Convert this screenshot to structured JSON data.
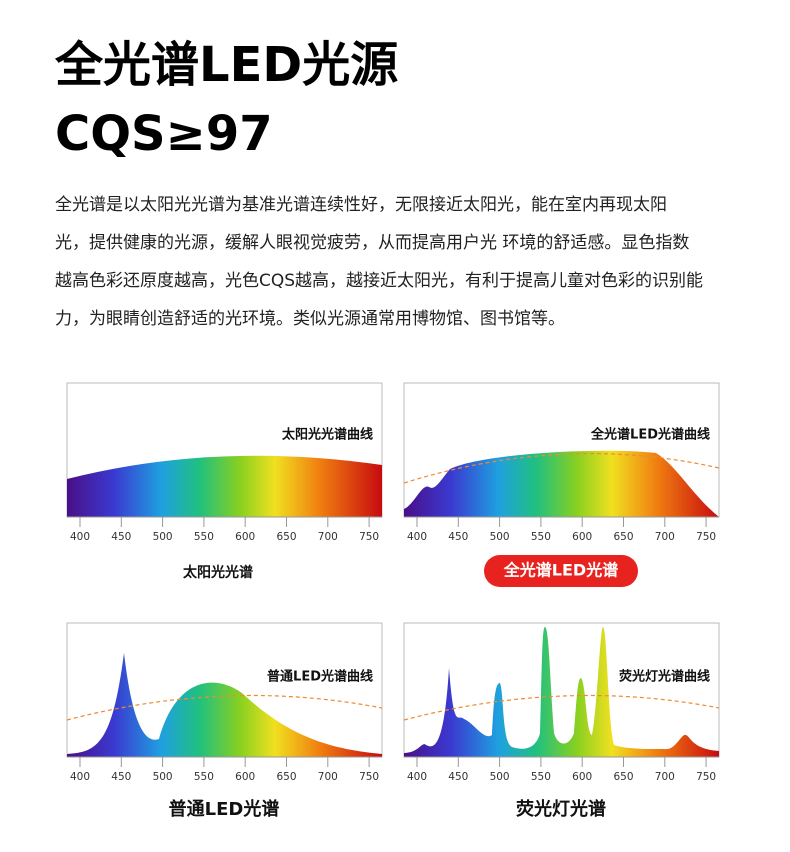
{
  "header": {
    "title": "全光谱LED光源",
    "subtitle": "CQS≥97"
  },
  "paragraph": [
    "全光谱是以太阳光光谱为基准光谱连续性好，无限接近太阳光，能在室内再现太阳",
    "光，提供健康的光源，缓解人眼视觉疲劳，从而提高用户光 环境的舒适感。显色指数",
    "越高色彩还原度越高，光色CQS越高，越接近太阳光，有利于提高儿童对色彩的识别能",
    "力，为眼睛创造舒适的光环境。类似光源通常用博物馆、图书馆等。"
  ],
  "axis_ticks": [
    "400",
    "450",
    "500",
    "550",
    "600",
    "650",
    "700",
    "750"
  ],
  "panels": [
    {
      "curve_label": "太阳光光谱曲线",
      "caption": "太阳光光谱"
    },
    {
      "curve_label": "全光谱LED光谱曲线",
      "caption": "全光谱LED光谱"
    },
    {
      "curve_label": "普通LED光谱曲线",
      "caption": "普通LED光谱"
    },
    {
      "curve_label": "荧光灯光谱曲线",
      "caption": "荧光灯光谱"
    }
  ]
}
